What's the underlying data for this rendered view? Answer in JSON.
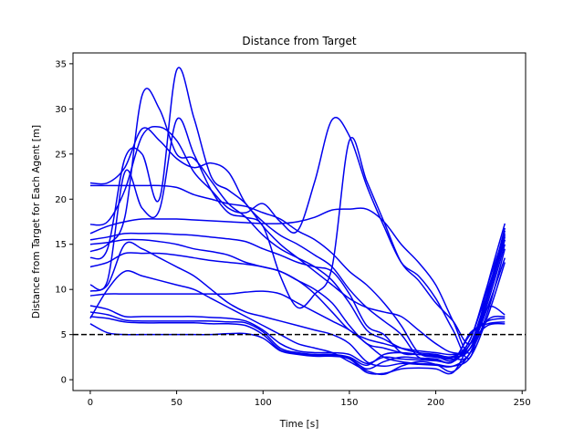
{
  "chart_data": {
    "type": "line",
    "title": "Distance from Target",
    "xlabel": "Time [s]",
    "ylabel": "Distance from Target for Each Agent [m]",
    "xlim": [
      -10,
      252
    ],
    "ylim": [
      -1.2,
      36.2
    ],
    "xticks": [
      0,
      50,
      100,
      150,
      200,
      250
    ],
    "yticks": [
      0,
      5,
      10,
      15,
      20,
      25,
      30,
      35
    ],
    "grid": false,
    "legend": "none",
    "line_color": "#0000ee",
    "threshold": {
      "y": 5,
      "color": "#000000",
      "style": "dashed"
    },
    "x": [
      0,
      10,
      20,
      30,
      40,
      50,
      60,
      70,
      80,
      90,
      100,
      110,
      120,
      130,
      140,
      150,
      160,
      170,
      180,
      190,
      200,
      210,
      220,
      230,
      240
    ],
    "series": [
      {
        "values": [
          21.8,
          21.8,
          23.5,
          27.8,
          26.5,
          24.5,
          23.5,
          24.0,
          23.0,
          19.5,
          17.5,
          16.0,
          15.0,
          13.8,
          12.5,
          10.0,
          8.0,
          6.5,
          5.0,
          2.5,
          2.2,
          2.0,
          4.5,
          10.0,
          15.5
        ]
      },
      {
        "values": [
          21.5,
          21.5,
          21.5,
          21.5,
          21.5,
          21.3,
          20.5,
          20.0,
          19.5,
          19.2,
          18.5,
          17.8,
          16.5,
          15.5,
          14.0,
          12.0,
          10.5,
          8.5,
          6.0,
          3.0,
          2.5,
          2.3,
          3.0,
          9.5,
          16.5
        ]
      },
      {
        "values": [
          17.2,
          17.5,
          21.0,
          27.0,
          28.0,
          26.5,
          23.0,
          21.0,
          19.0,
          18.5,
          19.5,
          17.5,
          16.5,
          22.0,
          28.8,
          27.0,
          21.5,
          17.0,
          13.0,
          11.5,
          9.0,
          5.5,
          2.5,
          10.5,
          17.3
        ]
      },
      {
        "values": [
          16.2,
          17.0,
          17.5,
          17.8,
          17.8,
          17.8,
          17.7,
          17.6,
          17.5,
          17.4,
          17.3,
          17.3,
          17.5,
          18.0,
          18.8,
          18.9,
          18.9,
          17.5,
          15.0,
          13.0,
          10.5,
          6.5,
          3.0,
          9.5,
          16.8
        ]
      },
      {
        "values": [
          15.5,
          15.8,
          16.2,
          16.2,
          16.2,
          16.1,
          16.0,
          15.8,
          15.6,
          15.3,
          14.5,
          13.8,
          13.0,
          12.5,
          12.0,
          9.5,
          6.0,
          5.0,
          3.0,
          2.8,
          2.6,
          2.5,
          4.5,
          10.5,
          16.2
        ]
      },
      {
        "values": [
          15.0,
          15.2,
          15.5,
          15.5,
          15.3,
          15.0,
          14.5,
          14.2,
          13.8,
          13.0,
          12.5,
          12.0,
          11.0,
          10.0,
          8.5,
          6.0,
          4.0,
          3.5,
          3.0,
          2.8,
          2.7,
          2.6,
          4.0,
          9.5,
          15.8
        ]
      },
      {
        "values": [
          14.2,
          15.0,
          18.0,
          31.5,
          30.0,
          25.0,
          24.5,
          22.0,
          19.5,
          18.0,
          16.0,
          14.5,
          13.5,
          12.5,
          11.0,
          8.5,
          5.5,
          4.5,
          3.5,
          3.0,
          2.8,
          2.5,
          3.5,
          9.0,
          15.5
        ]
      },
      {
        "values": [
          13.5,
          14.5,
          24.5,
          25.0,
          20.0,
          34.3,
          29.0,
          22.5,
          21.0,
          19.5,
          17.0,
          15.0,
          13.5,
          12.0,
          10.5,
          9.0,
          8.0,
          7.5,
          7.0,
          5.5,
          4.0,
          3.0,
          3.5,
          8.5,
          15.0
        ]
      },
      {
        "values": [
          12.5,
          13.0,
          14.0,
          14.0,
          14.0,
          13.8,
          13.5,
          13.2,
          13.0,
          12.8,
          12.5,
          12.0,
          11.0,
          9.5,
          7.5,
          5.5,
          4.5,
          4.0,
          3.5,
          3.2,
          3.0,
          2.8,
          3.5,
          8.0,
          13.5
        ]
      },
      {
        "values": [
          10.5,
          11.0,
          23.0,
          19.0,
          18.8,
          28.8,
          25.0,
          21.0,
          18.5,
          18.0,
          17.0,
          11.5,
          8.0,
          9.5,
          12.5,
          26.5,
          22.0,
          17.5,
          13.0,
          11.0,
          8.5,
          6.5,
          4.0,
          9.0,
          16.0
        ]
      },
      {
        "values": [
          9.8,
          10.5,
          15.0,
          14.5,
          13.5,
          12.5,
          11.5,
          10.0,
          8.5,
          7.5,
          7.0,
          6.5,
          6.0,
          5.5,
          5.0,
          4.0,
          2.0,
          1.5,
          1.8,
          1.7,
          1.6,
          1.5,
          3.0,
          7.5,
          14.5
        ]
      },
      {
        "values": [
          9.3,
          9.5,
          9.5,
          9.5,
          9.5,
          9.5,
          9.5,
          9.5,
          9.5,
          9.7,
          9.8,
          9.5,
          8.5,
          7.5,
          6.5,
          5.5,
          4.0,
          2.5,
          2.0,
          1.8,
          1.7,
          1.5,
          2.5,
          7.0,
          13.0
        ]
      },
      {
        "values": [
          8.2,
          7.8,
          7.0,
          7.0,
          7.0,
          7.0,
          7.0,
          6.9,
          6.8,
          6.5,
          5.5,
          4.0,
          3.2,
          3.0,
          3.0,
          2.8,
          1.8,
          2.5,
          2.3,
          2.2,
          2.1,
          2.0,
          4.0,
          8.0,
          7.2
        ]
      },
      {
        "values": [
          7.5,
          7.2,
          6.6,
          6.5,
          6.5,
          6.5,
          6.5,
          6.5,
          6.4,
          6.3,
          5.3,
          3.5,
          3.0,
          2.8,
          2.8,
          2.5,
          1.6,
          2.8,
          3.0,
          2.8,
          2.6,
          2.2,
          5.0,
          6.5,
          6.8
        ]
      },
      {
        "values": [
          7.0,
          6.8,
          6.4,
          6.3,
          6.3,
          6.3,
          6.3,
          6.2,
          6.2,
          6.0,
          5.0,
          3.3,
          2.9,
          2.7,
          2.7,
          2.4,
          1.2,
          2.0,
          2.5,
          2.4,
          2.3,
          2.0,
          5.2,
          6.2,
          6.4
        ]
      },
      {
        "values": [
          6.2,
          5.2,
          5.0,
          5.0,
          5.0,
          5.0,
          5.0,
          5.0,
          5.1,
          5.1,
          4.6,
          3.2,
          2.8,
          2.6,
          2.6,
          2.3,
          0.8,
          0.7,
          1.2,
          1.3,
          1.2,
          0.8,
          4.0,
          6.0,
          6.2
        ]
      },
      {
        "values": [
          6.8,
          10.0,
          12.0,
          11.5,
          11.0,
          10.5,
          10.0,
          9.0,
          8.0,
          7.0,
          6.0,
          5.0,
          4.0,
          3.5,
          3.0,
          2.0,
          1.0,
          0.6,
          1.5,
          2.0,
          1.7,
          0.9,
          3.0,
          6.6,
          7.0
        ]
      }
    ]
  }
}
